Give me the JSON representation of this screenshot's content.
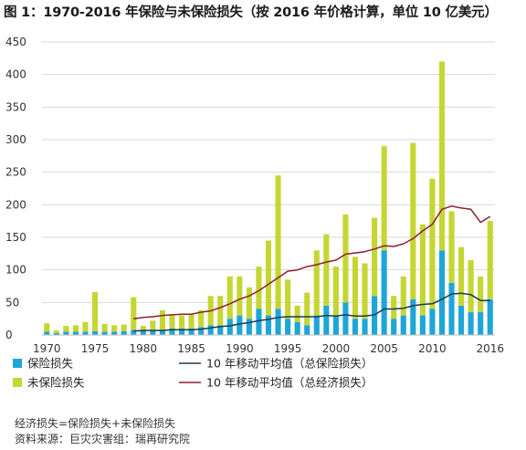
{
  "title": "图 1：1970-2016 年保险与未保险损失（按 2016 年价格计算，单位 10 亿美元）",
  "chart_data": {
    "type": "bar",
    "stacked": true,
    "ylim": [
      0,
      450
    ],
    "y_ticks": [
      0,
      50,
      100,
      150,
      200,
      250,
      300,
      350,
      400,
      450
    ],
    "x_tick_labels": [
      "1970",
      "1975",
      "1980",
      "1985",
      "1990",
      "1995",
      "2000",
      "2005",
      "2010",
      "2016"
    ],
    "grid": true,
    "categories": [
      "1970",
      "1971",
      "1972",
      "1973",
      "1974",
      "1975",
      "1976",
      "1977",
      "1978",
      "1979",
      "1980",
      "1981",
      "1982",
      "1983",
      "1984",
      "1985",
      "1986",
      "1987",
      "1988",
      "1989",
      "1990",
      "1991",
      "1992",
      "1993",
      "1994",
      "1995",
      "1996",
      "1997",
      "1998",
      "1999",
      "2000",
      "2001",
      "2002",
      "2003",
      "2004",
      "2005",
      "2006",
      "2007",
      "2008",
      "2009",
      "2010",
      "2011",
      "2012",
      "2013",
      "2014",
      "2015",
      "2016"
    ],
    "series": [
      {
        "name": "保险损失",
        "type": "bar",
        "color": "#1ea6d8",
        "values": [
          5,
          3,
          5,
          5,
          5,
          6,
          5,
          5,
          6,
          8,
          8,
          7,
          8,
          10,
          10,
          10,
          12,
          15,
          15,
          25,
          30,
          25,
          40,
          30,
          40,
          25,
          20,
          15,
          30,
          45,
          30,
          50,
          25,
          25,
          60,
          130,
          25,
          30,
          55,
          30,
          40,
          130,
          80,
          45,
          35,
          35,
          55
        ]
      },
      {
        "name": "未保险损失",
        "type": "bar",
        "color": "#c5d633",
        "values": [
          13,
          4,
          9,
          10,
          15,
          60,
          12,
          10,
          10,
          50,
          6,
          15,
          30,
          20,
          20,
          23,
          26,
          45,
          45,
          65,
          60,
          48,
          65,
          115,
          205,
          60,
          25,
          50,
          100,
          110,
          75,
          135,
          95,
          85,
          120,
          160,
          35,
          60,
          240,
          140,
          200,
          290,
          110,
          90,
          80,
          55,
          120
        ]
      },
      {
        "name": "10 年移动平均值（总保险损失）",
        "type": "line",
        "color": "#1c3a4a",
        "x": [
          "1979",
          "1980",
          "1981",
          "1982",
          "1983",
          "1984",
          "1985",
          "1986",
          "1987",
          "1988",
          "1989",
          "1990",
          "1991",
          "1992",
          "1993",
          "1994",
          "1995",
          "1996",
          "1997",
          "1998",
          "1999",
          "2000",
          "2001",
          "2002",
          "2003",
          "2004",
          "2005",
          "2006",
          "2007",
          "2008",
          "2009",
          "2010",
          "2011",
          "2012",
          "2013",
          "2014",
          "2015",
          "2016"
        ],
        "values": [
          6,
          7,
          7,
          7,
          8,
          8,
          8,
          9,
          11,
          13,
          14,
          17,
          19,
          22,
          24,
          27,
          28,
          28,
          28,
          28,
          30,
          29,
          31,
          29,
          29,
          31,
          40,
          40,
          41,
          45,
          47,
          48,
          55,
          63,
          64,
          62,
          53,
          53
        ]
      },
      {
        "name": "10 年移动平均值（总经济损失）",
        "type": "line",
        "color": "#8c1f2e",
        "x": [
          "1979",
          "1980",
          "1981",
          "1982",
          "1983",
          "1984",
          "1985",
          "1986",
          "1987",
          "1988",
          "1989",
          "1990",
          "1991",
          "1992",
          "1993",
          "1994",
          "1995",
          "1996",
          "1997",
          "1998",
          "1999",
          "2000",
          "2001",
          "2002",
          "2003",
          "2004",
          "2005",
          "2006",
          "2007",
          "2008",
          "2009",
          "2010",
          "2011",
          "2012",
          "2013",
          "2014",
          "2015",
          "2016"
        ],
        "values": [
          25,
          27,
          28,
          30,
          31,
          32,
          32,
          35,
          37,
          42,
          48,
          55,
          60,
          68,
          78,
          88,
          98,
          100,
          105,
          108,
          112,
          115,
          124,
          126,
          128,
          132,
          137,
          136,
          140,
          148,
          160,
          170,
          193,
          198,
          195,
          193,
          173,
          182
        ]
      }
    ]
  },
  "footnotes": [
    "经济损失=保险损失+未保险损失",
    "资料来源：巨灾灾害组：瑞再研究院"
  ]
}
